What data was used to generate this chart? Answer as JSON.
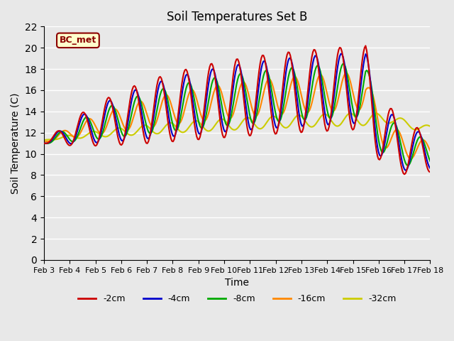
{
  "title": "Soil Temperatures Set B",
  "xlabel": "Time",
  "ylabel": "Soil Temperature (C)",
  "ylim": [
    0,
    22
  ],
  "yticks": [
    0,
    2,
    4,
    6,
    8,
    10,
    12,
    14,
    16,
    18,
    20,
    22
  ],
  "background_color": "#e8e8e8",
  "plot_bg_color": "#e8e8e8",
  "legend_label": "BC_met",
  "legend_box_color": "#ffffcc",
  "legend_box_edge_color": "#8B0000",
  "series": {
    "-2cm": {
      "color": "#cc0000",
      "lw": 1.5
    },
    "-4cm": {
      "color": "#0000cc",
      "lw": 1.5
    },
    "-8cm": {
      "color": "#00aa00",
      "lw": 1.5
    },
    "-16cm": {
      "color": "#ff8800",
      "lw": 1.5
    },
    "-32cm": {
      "color": "#cccc00",
      "lw": 1.5
    }
  },
  "xtick_labels": [
    "Feb 3",
    "Feb 4",
    "Feb 5",
    "Feb 6",
    "Feb 7",
    "Feb 8",
    "Feb 9",
    "Feb 10",
    "Feb 11",
    "Feb 12",
    "Feb 13",
    "Feb 14",
    "Feb 15",
    "Feb 16",
    "Feb 17",
    "Feb 18"
  ],
  "num_days": 15,
  "pts_per_day": 24
}
